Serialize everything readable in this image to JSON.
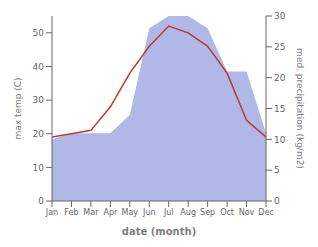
{
  "chart_data": {
    "type": "line",
    "xlabel": "date (month)",
    "ylabel": "max temp (C)",
    "y2label": "med. precipitation (kg/m2)",
    "categories": [
      "Jan",
      "Feb",
      "Mar",
      "Apr",
      "May",
      "Jun",
      "Jul",
      "Aug",
      "Sep",
      "Oct",
      "Nov",
      "Dec"
    ],
    "series": [
      {
        "type": "area",
        "color": "#b0b8e8",
        "axis": "y2",
        "values": [
          10,
          11,
          11,
          11,
          14,
          28,
          30,
          30,
          28,
          21,
          21,
          11
        ]
      },
      {
        "type": "line",
        "color": "#c0392b",
        "values": [
          19,
          20,
          21,
          28,
          38,
          46,
          52,
          50,
          46,
          38,
          24,
          19
        ]
      }
    ],
    "ylim": [
      0,
      55
    ],
    "yticks": [
      0,
      10,
      20,
      30,
      40,
      50
    ],
    "y2lim": [
      0,
      30
    ],
    "y2ticks": [
      0,
      5,
      10,
      15,
      20,
      25,
      30
    ],
    "grid": false
  }
}
